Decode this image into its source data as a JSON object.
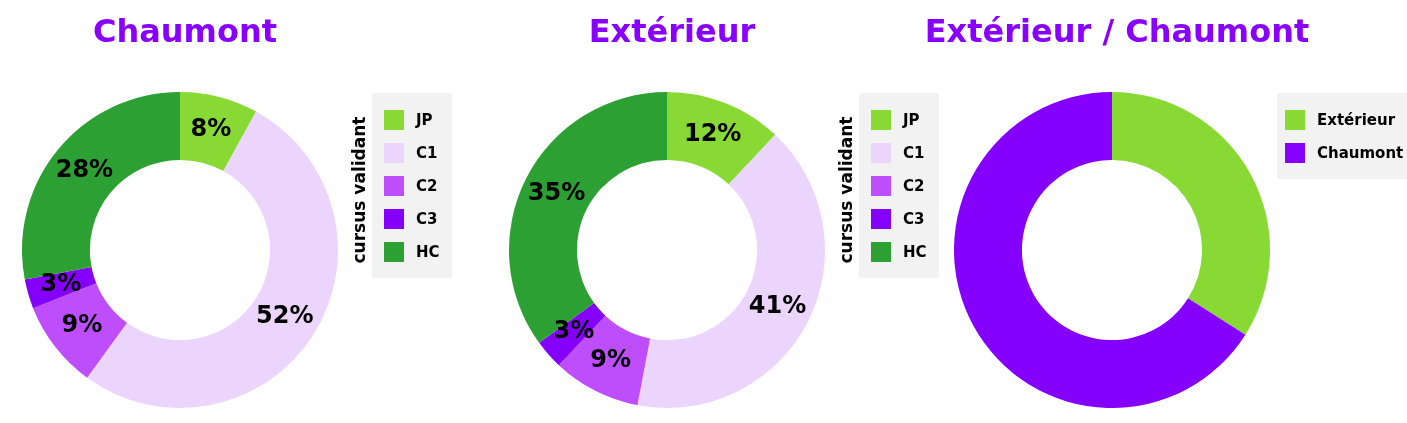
{
  "chart_data": [
    {
      "type": "donut",
      "title": "Chaumont",
      "legend_title": "cursus validant",
      "legend": "right",
      "categories": [
        "JP",
        "C1",
        "C2",
        "C3",
        "HC"
      ],
      "values": [
        8,
        52,
        9,
        3,
        28
      ],
      "value_labels": [
        "8%",
        "52%",
        "9%",
        "3%",
        "28%"
      ],
      "colors": [
        "#88d934",
        "#ecd5fc",
        "#be4dfc",
        "#8500fc",
        "#2ca032"
      ]
    },
    {
      "type": "donut",
      "title": "Extérieur",
      "legend_title": "cursus validant",
      "legend": "right",
      "categories": [
        "JP",
        "C1",
        "C2",
        "C3",
        "HC"
      ],
      "values": [
        12,
        41,
        9,
        3,
        35
      ],
      "value_labels": [
        "12%",
        "41%",
        "9%",
        "3%",
        "35%"
      ],
      "colors": [
        "#88d934",
        "#ecd5fc",
        "#be4dfc",
        "#8500fc",
        "#2ca032"
      ]
    },
    {
      "type": "donut",
      "title": "Extérieur / Chaumont",
      "legend": "right",
      "categories": [
        "Extérieur",
        "Chaumont"
      ],
      "values": [
        34,
        66
      ],
      "colors": [
        "#88d934",
        "#8500fc"
      ]
    }
  ]
}
